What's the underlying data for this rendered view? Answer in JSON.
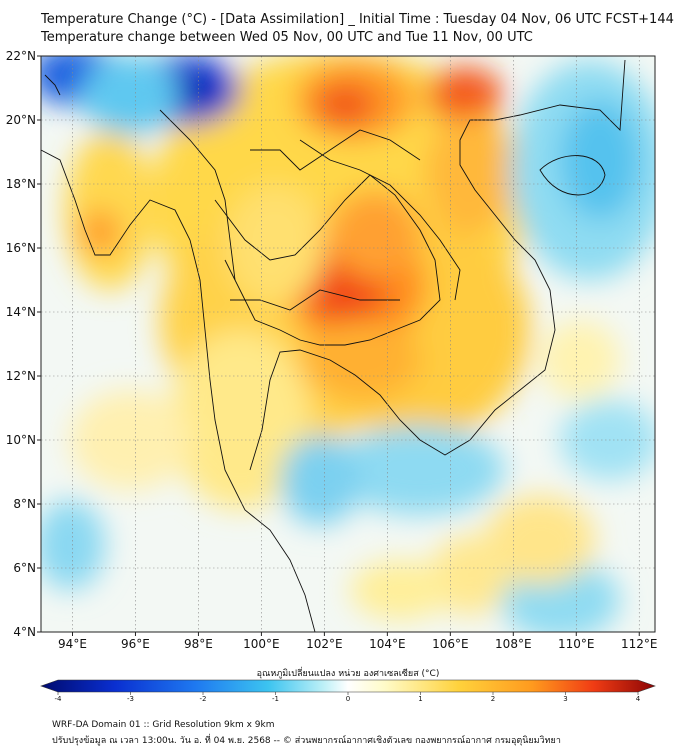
{
  "header": {
    "title_line1": "Temperature Change (°C) - [Data Assimilation] _ Initial Time : Tuesday 04 Nov, 06 UTC FCST+144",
    "title_line2": "Temperature change between Wed 05 Nov, 00 UTC and Tue 11 Nov, 00 UTC"
  },
  "map": {
    "lon_range": [
      93,
      112.5
    ],
    "lat_range": [
      4,
      22
    ],
    "lon_ticks": [
      "94°E",
      "96°E",
      "98°E",
      "100°E",
      "102°E",
      "104°E",
      "106°E",
      "108°E",
      "110°E",
      "112°E"
    ],
    "lat_ticks": [
      "22°N",
      "20°N",
      "18°N",
      "16°N",
      "14°N",
      "12°N",
      "10°N",
      "8°N",
      "6°N",
      "4°N"
    ]
  },
  "colorbar": {
    "title": "อุณหภูมิเปลี่ยนแปลง หน่วย องศาเซลเซียส (°C)",
    "ticks": [
      "-4",
      "-3",
      "-2",
      "-1",
      "0",
      "1",
      "2",
      "3",
      "4"
    ],
    "min": -4,
    "max": 4,
    "colors": [
      "#000a6e",
      "#0a2fd0",
      "#1e78f0",
      "#3cc4f0",
      "#a8ecf5",
      "#ffffff",
      "#fff6a0",
      "#ffd23c",
      "#ff9a1e",
      "#f03c14",
      "#a00a0a"
    ]
  },
  "footer": {
    "line1": "WRF-DA Domain 01 :: Grid Resolution 9km x 9km",
    "line2": "ปรับปรุงข้อมูล ณ เวลา 13:00น. วัน อ. ที่ 04 พ.ย. 2568 -- © ส่วนพยากรณ์อากาศเชิงตัวเลข กองพยากรณ์อากาศ กรมอุตุนิยมวิทยา"
  }
}
